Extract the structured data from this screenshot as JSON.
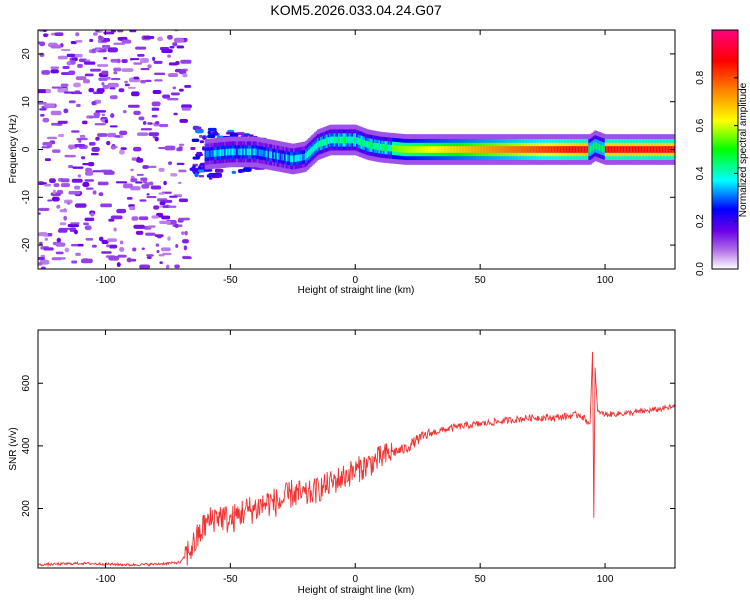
{
  "title": "KOM5.2026.033.04.24.G07",
  "chart_data": [
    {
      "type": "heatmap",
      "xlabel": "Height of straight line (km)",
      "ylabel": "Frequency (Hz)",
      "xlim": [
        -127,
        128
      ],
      "ylim": [
        -25,
        25
      ],
      "xticks": [
        -100,
        -50,
        0,
        50,
        100
      ],
      "yticks": [
        -20,
        -10,
        0,
        10,
        20
      ],
      "colorbar": {
        "label": "Normalized spectral amplitude",
        "range": [
          0,
          1
        ],
        "ticks": [
          "0.0",
          "0.2",
          "0.4",
          "0.6",
          "0.8"
        ],
        "colors": [
          "#ffffff",
          "#b06ce8",
          "#6a00e8",
          "#0000ff",
          "#00ffff",
          "#00ff00",
          "#ffff00",
          "#ff8000",
          "#ff0000",
          "#ff0080"
        ]
      },
      "ridge": [
        {
          "x": -60,
          "f": -1.0
        },
        {
          "x": -50,
          "f": -0.5
        },
        {
          "x": -40,
          "f": -0.5
        },
        {
          "x": -30,
          "f": -1.5
        },
        {
          "x": -25,
          "f": -2.0
        },
        {
          "x": -20,
          "f": -1.5
        },
        {
          "x": -15,
          "f": 1.0
        },
        {
          "x": -10,
          "f": 2.0
        },
        {
          "x": -5,
          "f": 2.0
        },
        {
          "x": 0,
          "f": 2.0
        },
        {
          "x": 5,
          "f": 1.0
        },
        {
          "x": 10,
          "f": 0.5
        },
        {
          "x": 20,
          "f": 0.0
        },
        {
          "x": 50,
          "f": 0.0
        },
        {
          "x": 94,
          "f": 0.0
        },
        {
          "x": 96,
          "f": 0.8
        },
        {
          "x": 100,
          "f": 0.0
        },
        {
          "x": 128,
          "f": 0.0
        }
      ]
    },
    {
      "type": "line",
      "xlabel": "Height of straight line (km)",
      "ylabel": "SNR (v/v)",
      "xlim": [
        -127,
        128
      ],
      "ylim": [
        10,
        770
      ],
      "xticks": [
        -100,
        -50,
        0,
        50,
        100
      ],
      "yticks": [
        200,
        400,
        600
      ],
      "series": [
        {
          "name": "SNR",
          "color": "#ee3333",
          "x": [
            -127,
            -110,
            -90,
            -80,
            -70,
            -65,
            -60,
            -55,
            -50,
            -45,
            -40,
            -35,
            -30,
            -25,
            -20,
            -15,
            -10,
            -5,
            0,
            5,
            10,
            15,
            20,
            25,
            30,
            40,
            50,
            60,
            70,
            80,
            90,
            94,
            95,
            95.5,
            96,
            97,
            100,
            110,
            120,
            128
          ],
          "y": [
            20,
            25,
            20,
            22,
            28,
            80,
            150,
            180,
            160,
            190,
            200,
            220,
            220,
            250,
            240,
            260,
            280,
            300,
            320,
            340,
            360,
            380,
            390,
            420,
            440,
            460,
            470,
            480,
            490,
            490,
            500,
            470,
            700,
            170,
            650,
            510,
            500,
            505,
            515,
            525
          ]
        }
      ]
    }
  ]
}
